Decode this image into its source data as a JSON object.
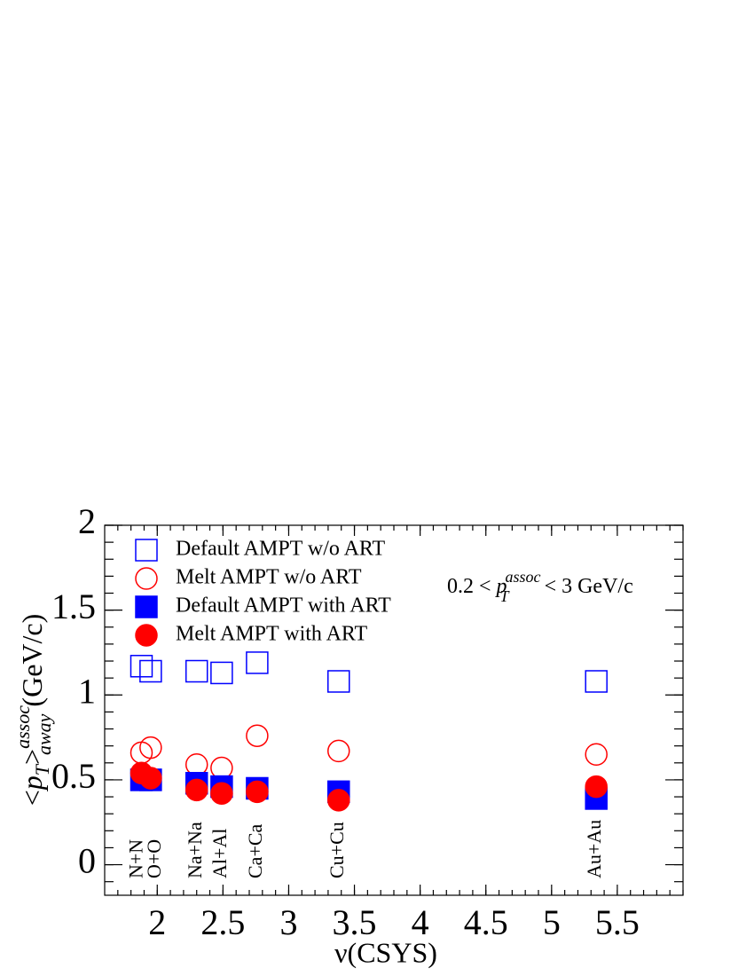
{
  "chart_data": {
    "type": "scatter",
    "x_title": "ν(CSYS)",
    "y_title": {
      "open": "<",
      "var": "p",
      "sub": "T",
      "close": ">",
      "sup": "assoc",
      "sub2": "away",
      "unit": " (GeV/c)"
    },
    "annotation": {
      "before": "0.2 < ",
      "var": "p",
      "sub": "T",
      "sup": "assoc",
      "after": " < 3 GeV/c"
    },
    "categories": [
      "N+N",
      "O+O",
      "Na+Na",
      "Al+Al",
      "Ca+Ca",
      "Cu+Cu",
      "Au+Au"
    ],
    "x": [
      1.88,
      1.95,
      2.3,
      2.49,
      2.76,
      3.38,
      5.34
    ],
    "series": [
      {
        "name": "Default AMPT w/o ART",
        "color": "#0000ff",
        "marker": "open-square",
        "values": [
          1.17,
          1.14,
          1.14,
          1.13,
          1.19,
          1.08,
          1.08
        ]
      },
      {
        "name": "Melt AMPT w/o ART",
        "color": "#ff0000",
        "marker": "open-circle",
        "values": [
          0.66,
          0.69,
          0.59,
          0.57,
          0.76,
          0.67,
          0.65
        ]
      },
      {
        "name": "Default AMPT with ART",
        "color": "#0000ff",
        "marker": "filled-square",
        "values": [
          0.5,
          0.5,
          0.48,
          0.46,
          0.45,
          0.43,
          0.39
        ]
      },
      {
        "name": "Melt AMPT with ART",
        "color": "#ff0000",
        "marker": "filled-circle",
        "values": [
          0.54,
          0.51,
          0.44,
          0.42,
          0.43,
          0.38,
          0.46
        ]
      }
    ],
    "xlim": [
      1.6,
      6.0
    ],
    "ylim": [
      -0.18,
      2
    ],
    "xticks": [
      2,
      2.5,
      3,
      3.5,
      4,
      4.5,
      5,
      5.5
    ],
    "yticks": [
      0,
      0.5,
      1,
      1.5,
      2
    ]
  }
}
